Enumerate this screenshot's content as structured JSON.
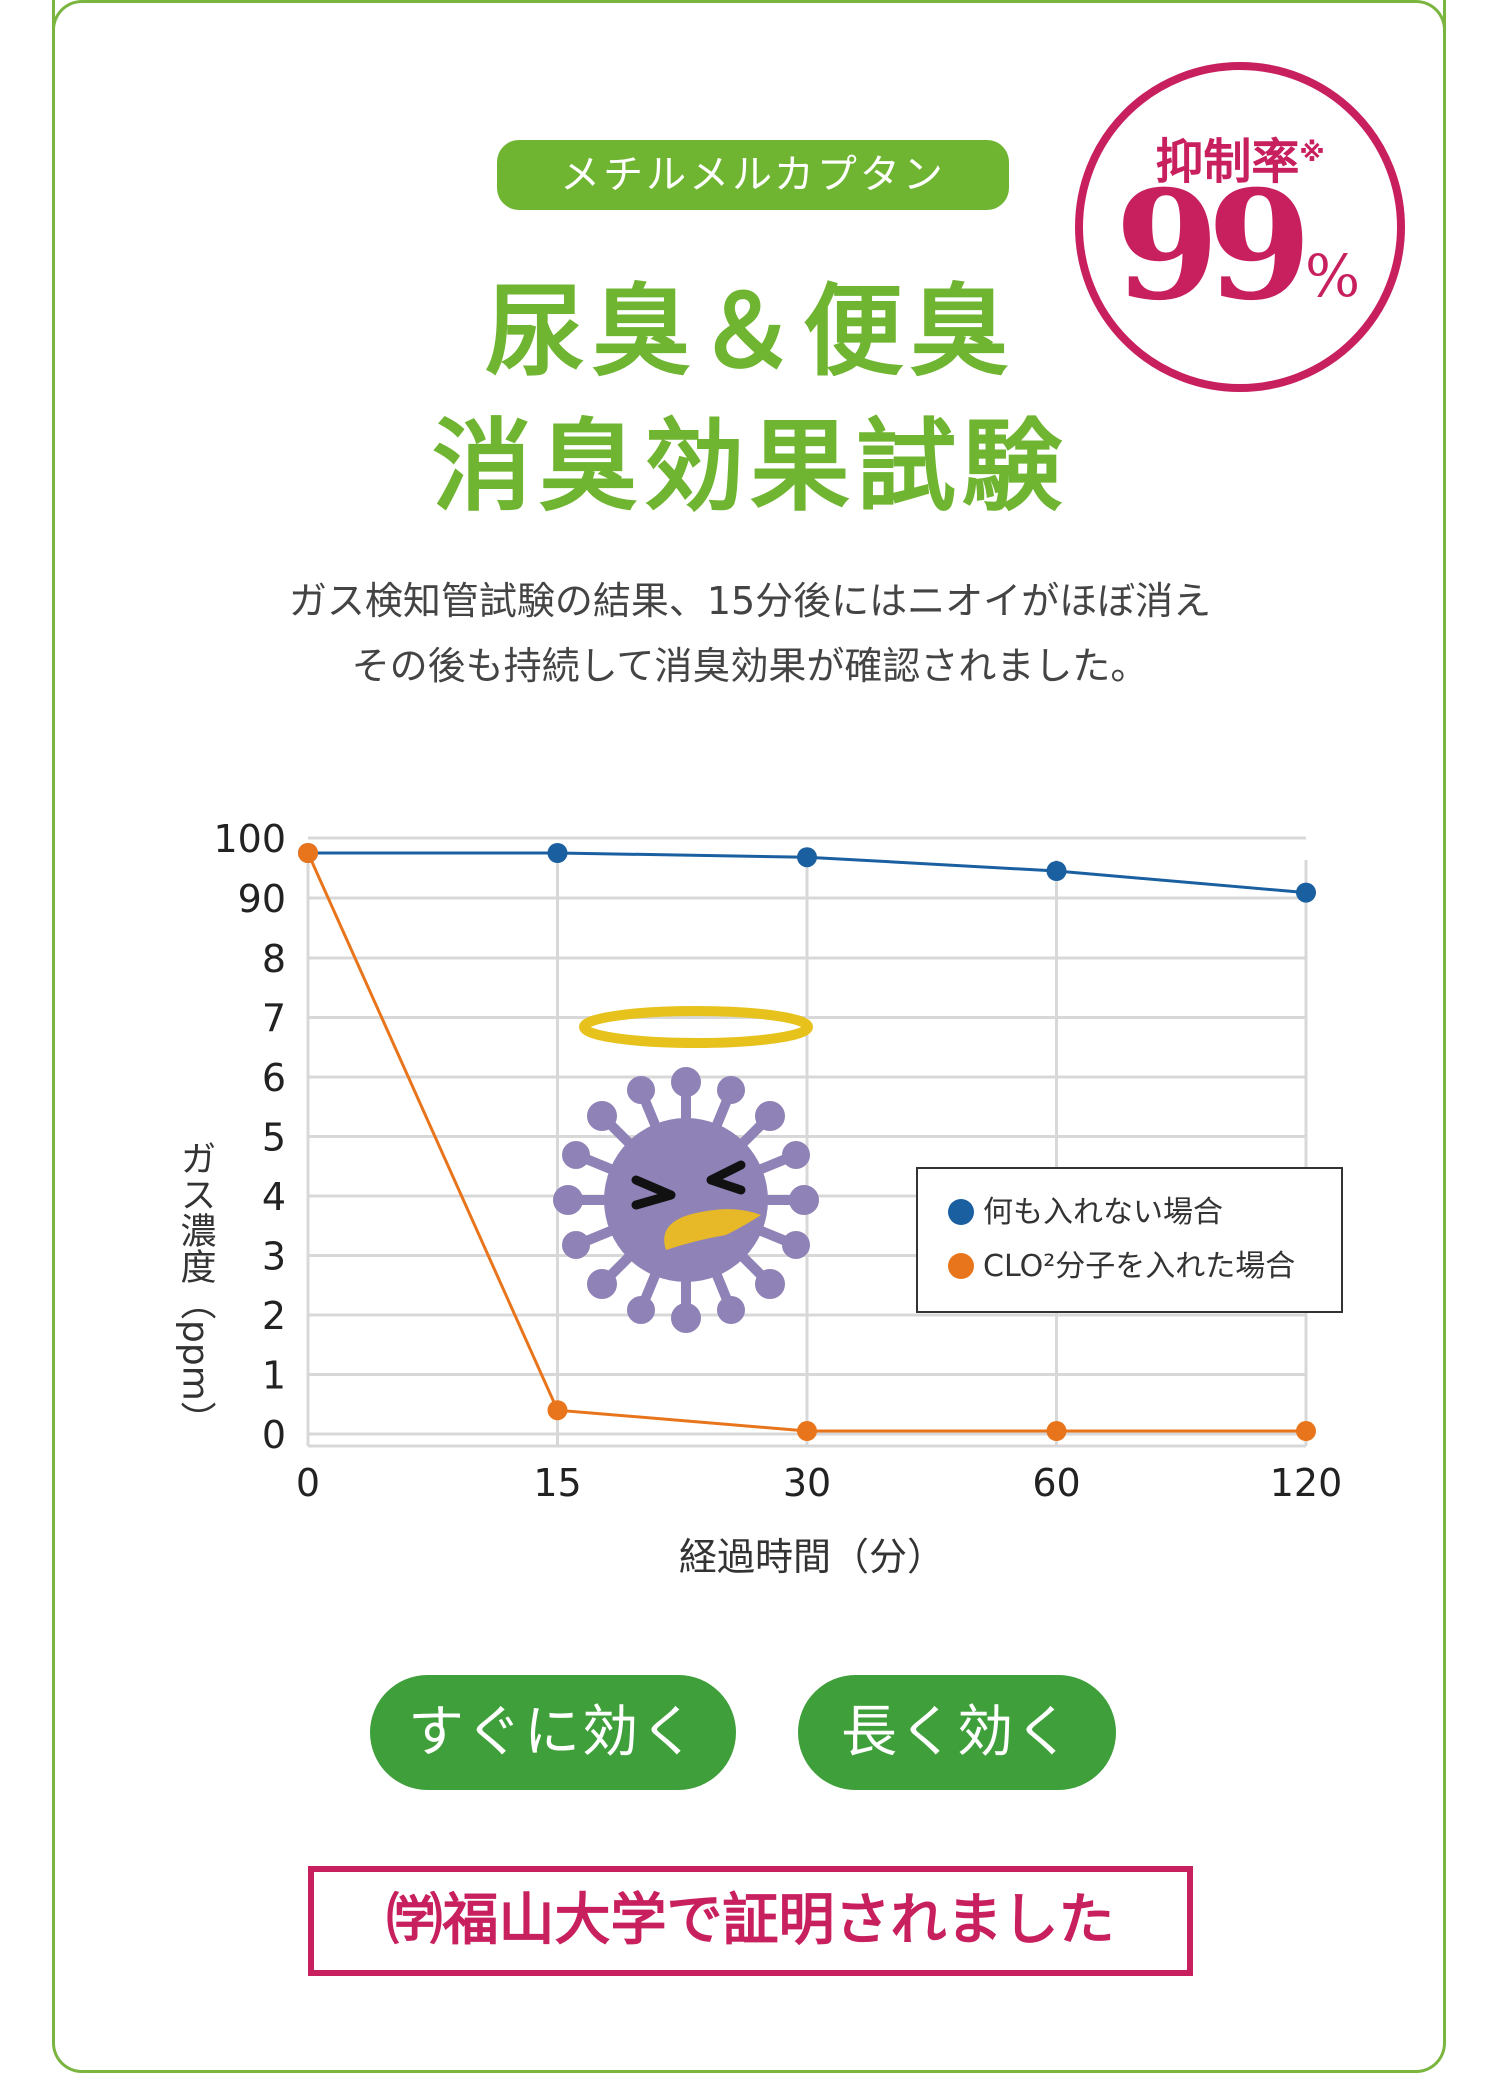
{
  "tag": "メチルメルカプタン",
  "title_line1": "尿臭＆便臭",
  "title_line2": "消臭効果試験",
  "badge": {
    "label": "抑制率",
    "note": "※",
    "value": "99",
    "unit": "%"
  },
  "description_line1": "ガス検知管試験の結果、15分後にはニオイがほぼ消え",
  "description_line2": "その後も持続して消臭効果が確認されました。",
  "buttons": {
    "fast": "すぐに効く",
    "long": "長く効く"
  },
  "proof": "㈻福山大学で証明されました",
  "colors": {
    "green": "#6fb532",
    "button_green": "#3f9f3a",
    "magenta": "#c8205e",
    "blue": "#1a5fa0",
    "orange": "#e8751c"
  },
  "chart_data": {
    "type": "line",
    "xlabel": "経過時間（分）",
    "ylabel": "ガス濃度（ppm）",
    "categories": [
      "0",
      "15",
      "30",
      "60",
      "120"
    ],
    "y_ticks": [
      "100",
      "90",
      "8",
      "7",
      "6",
      "5",
      "4",
      "3",
      "2",
      "1",
      "0"
    ],
    "series": [
      {
        "name": "何も入れない場合",
        "color": "#1a5fa0",
        "values": [
          97.5,
          97.5,
          96.8,
          94.5,
          90.9
        ]
      },
      {
        "name": "CLO²分子を入れた場合",
        "color": "#e8751c",
        "values": [
          97.5,
          0.4,
          0.05,
          0.05,
          0.05
        ]
      }
    ],
    "grid": true,
    "legend_position": "right"
  }
}
